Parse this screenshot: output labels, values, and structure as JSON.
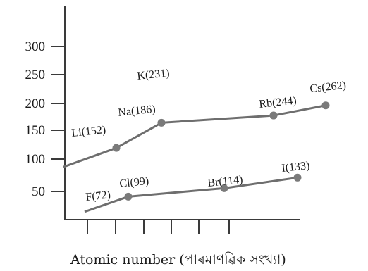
{
  "chart_data": {
    "type": "line",
    "title": "",
    "xlabel": "Atomic number (পাৰমাণৱিক সংখ্যা)",
    "ylabel": "",
    "ylim": [
      0,
      350
    ],
    "y_ticks": [
      "300",
      "250",
      "200",
      "150",
      "100",
      "50"
    ],
    "grid": false,
    "series": [
      {
        "points": [
          {
            "label": "Li(152)",
            "value": 152
          },
          {
            "label": "Na(186)",
            "value": 186
          },
          {
            "label": "K(231)",
            "value": 231
          },
          {
            "label": "Rb(244)",
            "value": 244
          },
          {
            "label": "Cs(262)",
            "value": 262
          }
        ]
      },
      {
        "points": [
          {
            "label": "F(72)",
            "value": 72
          },
          {
            "label": "Cl(99)",
            "value": 99
          },
          {
            "label": "Br(114)",
            "value": 114
          },
          {
            "label": "I(133)",
            "value": 133
          }
        ]
      }
    ]
  }
}
